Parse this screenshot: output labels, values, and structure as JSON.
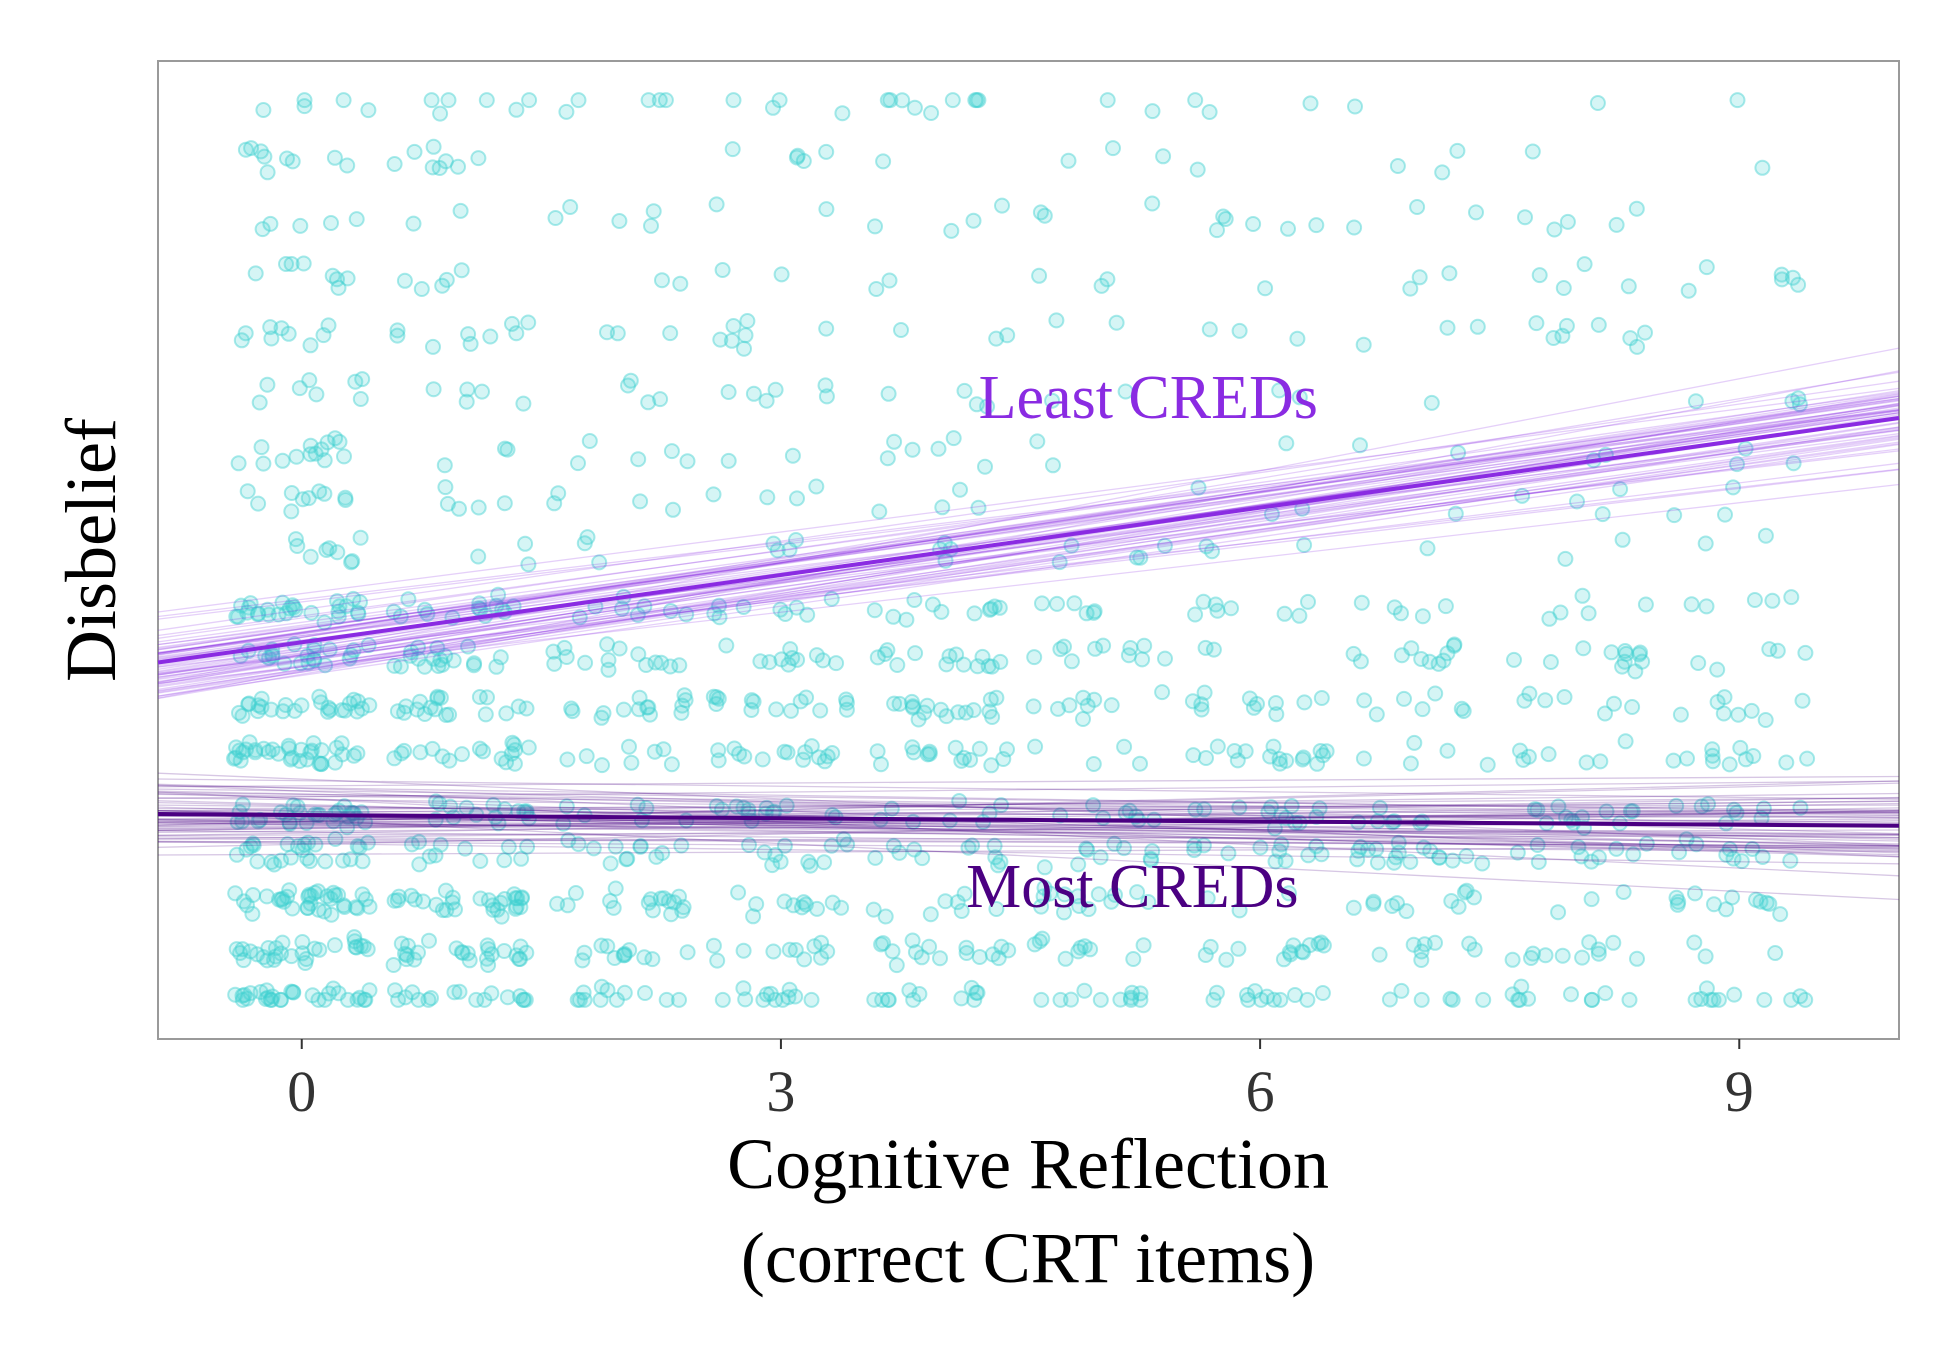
{
  "chart_data": {
    "type": "scatter",
    "title": "",
    "xlabel_line1": "Cognitive Reflection",
    "xlabel_line2": "(correct CRT items)",
    "ylabel": "Disbelief",
    "xlim": [
      -0.9,
      10.0
    ],
    "ylim": [
      0,
      1
    ],
    "x_ticks": [
      0,
      3,
      6,
      9
    ],
    "grid": false,
    "points_color": "#40D0D0",
    "points_count": 1500,
    "series": [
      {
        "name": "Least CREDs",
        "color": "#8A2BE2",
        "fit": {
          "x0": -0.9,
          "y0": 0.385,
          "x1": 10.0,
          "y1": 0.635
        },
        "draws": 60
      },
      {
        "name": "Most CREDs",
        "color": "#4B0082",
        "fit": {
          "x0": -0.9,
          "y0": 0.23,
          "x1": 10.0,
          "y1": 0.218
        },
        "draws": 60
      }
    ],
    "annotations": [
      {
        "text": "Least CREDs",
        "x": 5.3,
        "y": 0.635,
        "series": 0
      },
      {
        "text": "Most CREDs",
        "x": 5.2,
        "y": 0.135,
        "series": 1
      }
    ]
  }
}
